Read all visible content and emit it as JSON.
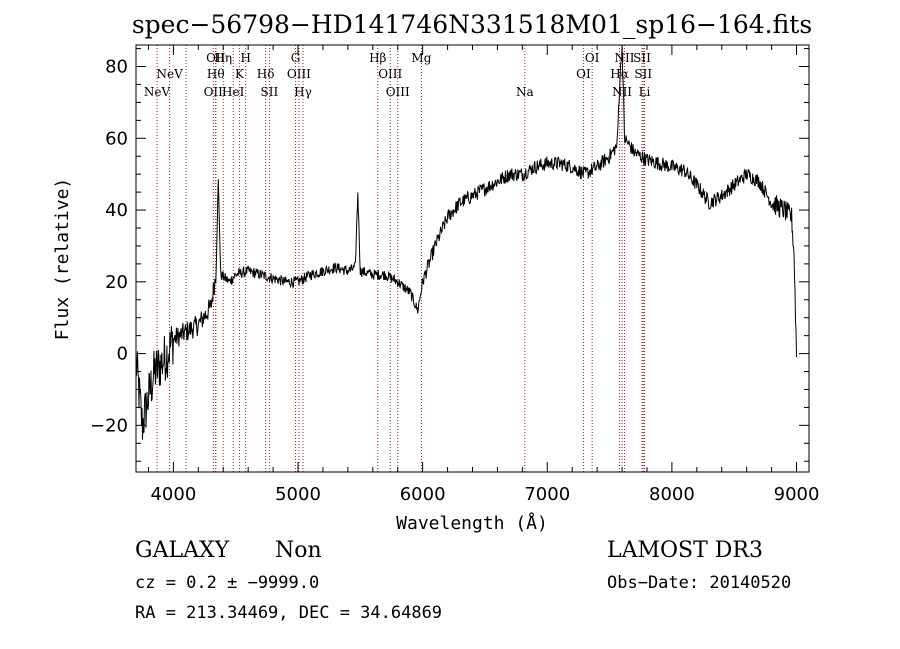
{
  "chart_data": {
    "type": "line",
    "title": "spec−56798−HD141746N331518M01_sp16−164.fits",
    "xlabel": "Wavelength (Å)",
    "ylabel": "Flux (relative)",
    "xlim": [
      3700,
      9100
    ],
    "ylim": [
      -33,
      86
    ],
    "x_ticks": [
      4000,
      5000,
      6000,
      7000,
      8000,
      9000
    ],
    "y_ticks": [
      -20,
      0,
      20,
      40,
      60,
      80
    ],
    "y_tick_labels": [
      "−20",
      "0",
      "20",
      "40",
      "60",
      "80"
    ],
    "line_color": "#000000",
    "marker_line_color": "#a02020",
    "spectral_lines": [
      {
        "wavelength": 3869,
        "label": "NeV",
        "row": 3
      },
      {
        "wavelength": 3970,
        "label": "NeV",
        "row": 2
      },
      {
        "wavelength": 4320,
        "label": "OII",
        "row": 3
      },
      {
        "wavelength": 4340,
        "label": "OII",
        "row": 1
      },
      {
        "wavelength": 4102,
        "label": "",
        "row": 0
      },
      {
        "wavelength": 4340,
        "label": "Hθ",
        "row": 2
      },
      {
        "wavelength": 4400,
        "label": "Hη",
        "row": 1
      },
      {
        "wavelength": 4480,
        "label": "HeI",
        "row": 3
      },
      {
        "wavelength": 4530,
        "label": "K",
        "row": 2
      },
      {
        "wavelength": 4580,
        "label": "H",
        "row": 1
      },
      {
        "wavelength": 4740,
        "label": "Hδ",
        "row": 2
      },
      {
        "wavelength": 4770,
        "label": "SII",
        "row": 3
      },
      {
        "wavelength": 4980,
        "label": "G",
        "row": 1
      },
      {
        "wavelength": 5007,
        "label": "OIII",
        "row": 2
      },
      {
        "wavelength": 5040,
        "label": "Hγ",
        "row": 3
      },
      {
        "wavelength": 5640,
        "label": "Hβ",
        "row": 1
      },
      {
        "wavelength": 5740,
        "label": "OIII",
        "row": 2
      },
      {
        "wavelength": 5800,
        "label": "OIII",
        "row": 3
      },
      {
        "wavelength": 5990,
        "label": "Mg",
        "row": 1
      },
      {
        "wavelength": 6820,
        "label": "Na",
        "row": 3
      },
      {
        "wavelength": 7290,
        "label": "OI",
        "row": 2
      },
      {
        "wavelength": 7360,
        "label": "OI",
        "row": 1
      },
      {
        "wavelength": 7580,
        "label": "Hα",
        "row": 2
      },
      {
        "wavelength": 7600,
        "label": "NII",
        "row": 3
      },
      {
        "wavelength": 7620,
        "label": "NII",
        "row": 1
      },
      {
        "wavelength": 7760,
        "label": "SII",
        "row": 1
      },
      {
        "wavelength": 7770,
        "label": "SII",
        "row": 2
      },
      {
        "wavelength": 7780,
        "label": "Li",
        "row": 3
      }
    ],
    "spectrum_anchors": [
      [
        3700,
        -2
      ],
      [
        3750,
        -20
      ],
      [
        3800,
        -12
      ],
      [
        3850,
        -5
      ],
      [
        3900,
        -3
      ],
      [
        3950,
        0
      ],
      [
        4000,
        4
      ],
      [
        4100,
        6
      ],
      [
        4200,
        8
      ],
      [
        4300,
        13
      ],
      [
        4340,
        22
      ],
      [
        4360,
        48
      ],
      [
        4380,
        22
      ],
      [
        4450,
        20
      ],
      [
        4500,
        22
      ],
      [
        4600,
        23
      ],
      [
        4700,
        22
      ],
      [
        4800,
        21
      ],
      [
        4900,
        20
      ],
      [
        5000,
        20
      ],
      [
        5100,
        22
      ],
      [
        5200,
        23
      ],
      [
        5300,
        24
      ],
      [
        5400,
        23
      ],
      [
        5460,
        24
      ],
      [
        5480,
        45
      ],
      [
        5500,
        23
      ],
      [
        5600,
        22
      ],
      [
        5700,
        22
      ],
      [
        5800,
        20
      ],
      [
        5900,
        17
      ],
      [
        5960,
        12
      ],
      [
        6000,
        20
      ],
      [
        6100,
        30
      ],
      [
        6200,
        38
      ],
      [
        6300,
        42
      ],
      [
        6400,
        44
      ],
      [
        6500,
        46
      ],
      [
        6600,
        48
      ],
      [
        6700,
        50
      ],
      [
        6800,
        50
      ],
      [
        6900,
        52
      ],
      [
        7000,
        53
      ],
      [
        7100,
        53
      ],
      [
        7200,
        52
      ],
      [
        7300,
        50
      ],
      [
        7400,
        52
      ],
      [
        7500,
        55
      ],
      [
        7560,
        58
      ],
      [
        7580,
        75
      ],
      [
        7600,
        86
      ],
      [
        7620,
        60
      ],
      [
        7700,
        56
      ],
      [
        7800,
        54
      ],
      [
        7900,
        53
      ],
      [
        8000,
        52
      ],
      [
        8100,
        51
      ],
      [
        8200,
        47
      ],
      [
        8300,
        42
      ],
      [
        8400,
        44
      ],
      [
        8500,
        47
      ],
      [
        8600,
        50
      ],
      [
        8700,
        48
      ],
      [
        8800,
        42
      ],
      [
        8900,
        40
      ],
      [
        8960,
        38
      ],
      [
        8980,
        28
      ],
      [
        9000,
        0
      ]
    ]
  },
  "info": {
    "class_label": "GALAXY",
    "subclass_label": "Non",
    "survey_label": "LAMOST DR3",
    "cz_text": "cz = 0.2 ± −9999.0",
    "obs_date_text": "Obs−Date: 20140520",
    "coords_text": "RA = 213.34469, DEC =  34.64869"
  }
}
